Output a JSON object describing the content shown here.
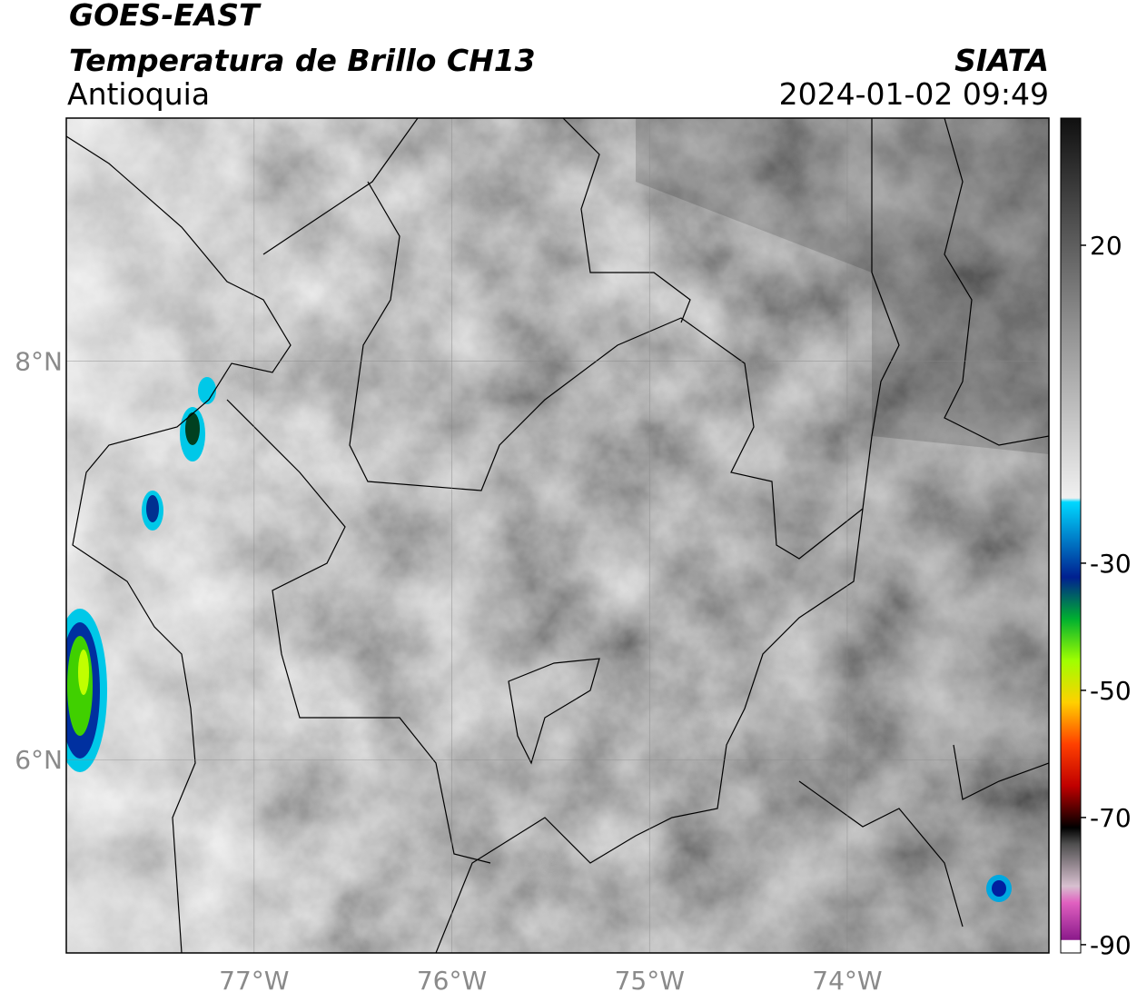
{
  "header": {
    "title": "GOES-EAST",
    "subtitle": "Temperatura de Brillo CH13",
    "region": "Antioquia",
    "source": "SIATA",
    "datetime": "2024-01-02 09:49"
  },
  "map": {
    "lonlim": [
      -77.95,
      -72.98
    ],
    "latlim": [
      5.03,
      9.22
    ],
    "lon_ticks": [
      {
        "value": -77,
        "label": "77°W"
      },
      {
        "value": -76,
        "label": "76°W"
      },
      {
        "value": -75,
        "label": "75°W"
      },
      {
        "value": -74,
        "label": "74°W"
      }
    ],
    "lat_ticks": [
      {
        "value": 8,
        "label": "8°N"
      },
      {
        "value": 6,
        "label": "6°N"
      }
    ]
  },
  "colorbar": {
    "lim": [
      -91.3,
      40
    ],
    "ticks": [
      20,
      -30,
      -50,
      -70,
      -90
    ]
  }
}
